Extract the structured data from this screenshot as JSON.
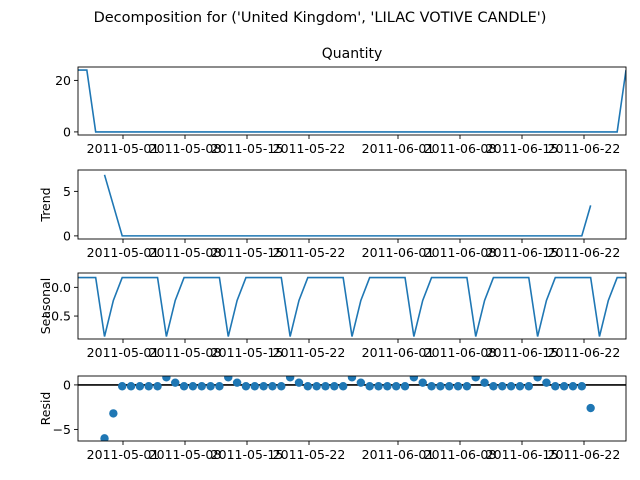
{
  "suptitle": "Decomposition for ('United Kingdom', 'LILAC VOTIVE CANDLE')",
  "colors": {
    "line": "#1f77b4",
    "axis": "#000000",
    "background": "#ffffff"
  },
  "x_tick_labels": [
    "2011-05-01",
    "2011-05-08",
    "2011-05-15",
    "2011-05-22",
    "2011-06-01",
    "2011-06-08",
    "2011-06-15",
    "2011-06-22"
  ],
  "chart_data": [
    {
      "type": "line",
      "title": "Quantity",
      "ylabel": "",
      "x_range": [
        0,
        62
      ],
      "ylim": [
        -1.2,
        25.2
      ],
      "yticks": [
        0,
        20
      ],
      "ytick_labels": [
        "0",
        "20"
      ],
      "x": [
        0,
        1,
        2,
        60,
        61,
        62
      ],
      "values": [
        24,
        24,
        0,
        0,
        0,
        24
      ]
    },
    {
      "type": "line",
      "title": "",
      "ylabel": "Trend",
      "x_range": [
        0,
        62
      ],
      "ylim": [
        -0.35,
        7.4
      ],
      "yticks": [
        0,
        5
      ],
      "ytick_labels": [
        "0",
        "5"
      ],
      "x": [
        3,
        5,
        57,
        58
      ],
      "values": [
        6.86,
        0,
        0,
        3.43
      ]
    },
    {
      "type": "line",
      "title": "",
      "ylabel": "Seasonal",
      "x_range": [
        0,
        62
      ],
      "ylim": [
        -0.9,
        0.25
      ],
      "yticks": [
        0,
        -0.5
      ],
      "ytick_labels": [
        "0.0",
        "−0.5"
      ],
      "x": [
        0,
        2,
        3,
        4,
        5,
        9,
        10,
        11,
        12,
        16,
        17,
        18,
        19,
        23,
        24,
        25,
        26,
        30,
        31,
        32,
        33,
        37,
        38,
        39,
        40,
        44,
        45,
        46,
        47,
        51,
        52,
        53,
        54,
        58,
        59,
        60,
        61,
        62
      ],
      "values": [
        0.171,
        0.171,
        -0.857,
        -0.229,
        0.171,
        0.171,
        -0.857,
        -0.229,
        0.171,
        0.171,
        -0.857,
        -0.229,
        0.171,
        0.171,
        -0.857,
        -0.229,
        0.171,
        0.171,
        -0.857,
        -0.229,
        0.171,
        0.171,
        -0.857,
        -0.229,
        0.171,
        0.171,
        -0.857,
        -0.229,
        0.171,
        0.171,
        -0.857,
        -0.229,
        0.171,
        0.171,
        -0.857,
        -0.229,
        0.171,
        0.171
      ]
    },
    {
      "type": "scatter",
      "title": "",
      "ylabel": "Resid",
      "x_range": [
        0,
        62
      ],
      "ylim": [
        -6.3,
        1.0
      ],
      "yticks": [
        0,
        -5
      ],
      "ytick_labels": [
        "0",
        "−5"
      ],
      "zero_line": true,
      "x": [
        3,
        4,
        5,
        6,
        7,
        8,
        9,
        10,
        11,
        12,
        13,
        14,
        15,
        16,
        17,
        18,
        19,
        20,
        21,
        22,
        23,
        24,
        25,
        26,
        27,
        28,
        29,
        30,
        31,
        32,
        33,
        34,
        35,
        36,
        37,
        38,
        39,
        40,
        41,
        42,
        43,
        44,
        45,
        46,
        47,
        48,
        49,
        50,
        51,
        52,
        53,
        54,
        55,
        56,
        57,
        58
      ],
      "values": [
        -6.0,
        -3.2,
        -0.15,
        -0.15,
        -0.15,
        -0.15,
        -0.15,
        0.85,
        0.25,
        -0.15,
        -0.15,
        -0.15,
        -0.15,
        -0.15,
        0.85,
        0.25,
        -0.15,
        -0.15,
        -0.15,
        -0.15,
        -0.15,
        0.85,
        0.25,
        -0.15,
        -0.15,
        -0.15,
        -0.15,
        -0.15,
        0.85,
        0.25,
        -0.15,
        -0.15,
        -0.15,
        -0.15,
        -0.15,
        0.85,
        0.25,
        -0.15,
        -0.15,
        -0.15,
        -0.15,
        -0.15,
        0.85,
        0.25,
        -0.15,
        -0.15,
        -0.15,
        -0.15,
        -0.15,
        0.85,
        0.25,
        -0.15,
        -0.15,
        -0.15,
        -0.15,
        -2.6
      ]
    }
  ]
}
